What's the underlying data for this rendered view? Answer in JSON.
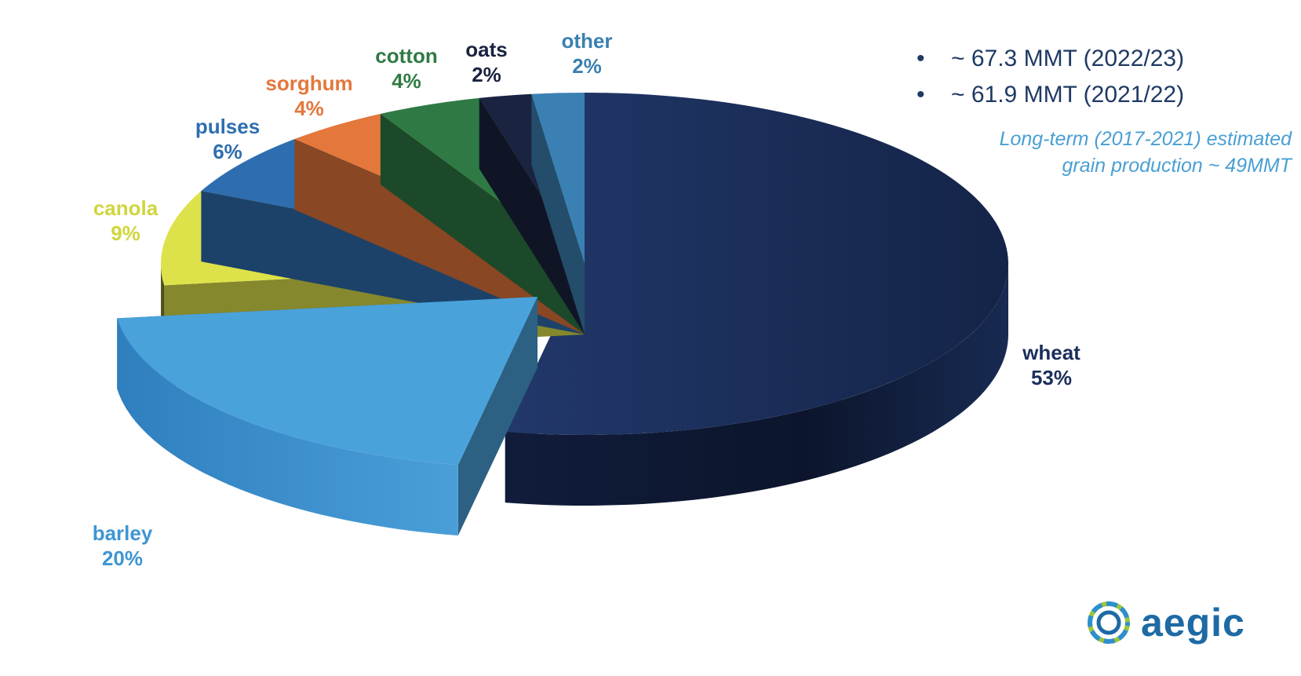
{
  "chart_data": {
    "type": "pie",
    "style": "3d-exploded",
    "slices": [
      {
        "label": "wheat",
        "value": 53,
        "value_label": "53%",
        "color": "#1b2f5c",
        "label_color": "#1b2f5c"
      },
      {
        "label": "barley",
        "value": 20,
        "value_label": "20%",
        "color": "#4aa2db",
        "label_color": "#3f95d3",
        "exploded": true
      },
      {
        "label": "canola",
        "value": 9,
        "value_label": "9%",
        "color": "#dde24a",
        "label_color": "#cfd63c"
      },
      {
        "label": "pulses",
        "value": 6,
        "value_label": "6%",
        "color": "#2e6eb0",
        "label_color": "#2e6eb0"
      },
      {
        "label": "sorghum",
        "value": 4,
        "value_label": "4%",
        "color": "#e4773c",
        "label_color": "#e4773c"
      },
      {
        "label": "cotton",
        "value": 4,
        "value_label": "4%",
        "color": "#2f7a44",
        "label_color": "#2f7a44"
      },
      {
        "label": "oats",
        "value": 2,
        "value_label": "2%",
        "color": "#1a2340",
        "label_color": "#1a2340"
      },
      {
        "label": "other",
        "value": 2,
        "value_label": "2%",
        "color": "#3a80b2",
        "label_color": "#3a80b2"
      }
    ]
  },
  "notes": [
    "~ 67.3 MMT (2022/23)",
    "~ 61.9 MMT (2021/22)"
  ],
  "long_term_note": [
    "Long-term (2017-2021) estimated",
    "grain production ~ 49MMT"
  ],
  "logo": {
    "text": "aegic"
  }
}
